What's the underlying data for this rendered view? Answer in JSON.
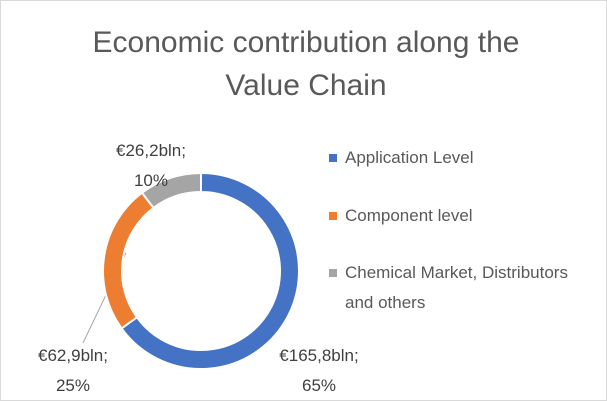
{
  "chart_data": {
    "type": "donut",
    "title": "Economic contribution along the Value Chain",
    "categories": [
      "Application Level",
      "Component level",
      "Chemical Market, Distributors and others"
    ],
    "values": [
      165.8,
      62.9,
      26.2
    ],
    "value_labels": [
      "€165,8bln;\n65%",
      "€62,9bln;\n25%",
      "€26,2bln;\n10%"
    ],
    "colors": [
      "#4472c4",
      "#ed7d31",
      "#a5a5a5"
    ],
    "legend": "right"
  }
}
